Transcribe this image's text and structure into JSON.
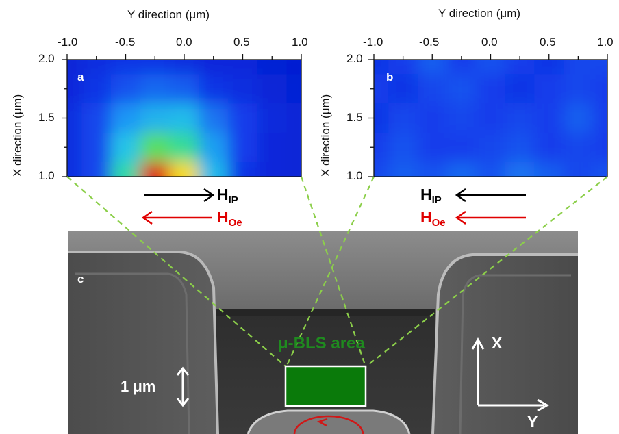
{
  "panels": {
    "a": {
      "label": "a",
      "x_title": "Y direction (μm)",
      "y_title": "X direction (μm)",
      "x_ticks": [
        "-1.0",
        "-0.5",
        "0.0",
        "0.5",
        "1.0"
      ],
      "y_ticks": [
        "2.0",
        "1.5",
        "1.0"
      ]
    },
    "b": {
      "label": "b",
      "x_title": "Y direction (μm)",
      "y_title": "X direction (μm)",
      "x_ticks": [
        "-1.0",
        "-0.5",
        "0.0",
        "0.5",
        "1.0"
      ],
      "y_ticks": [
        "2.0",
        "1.5",
        "1.0"
      ]
    },
    "c": {
      "label": "c",
      "area_label": "μ-BLS area",
      "scale_label": "1 μm",
      "axis_x_label": "X",
      "axis_y_label": "Y"
    }
  },
  "field_labels": {
    "a": {
      "hip_main": "H",
      "hip_sub": "IP",
      "hoe_main": "H",
      "hoe_sub": "Oe",
      "hip_direction": "right",
      "hoe_direction": "left"
    },
    "b": {
      "hip_main": "H",
      "hip_sub": "IP",
      "hoe_main": "H",
      "hoe_sub": "Oe",
      "hip_direction": "left",
      "hoe_direction": "left"
    }
  },
  "colors": {
    "hip": "#000000",
    "hoe": "#e00000",
    "area": "#0a7a0a",
    "area_text": "#1f8a1f",
    "dash": "#8ccf4a",
    "map_base": "#1238e6"
  },
  "chart_data": [
    {
      "type": "heatmap",
      "title": "",
      "xlabel": "Y direction (μm)",
      "ylabel": "X direction (μm)",
      "xlim": [
        -1.0,
        1.0
      ],
      "ylim": [
        1.0,
        2.0
      ],
      "x": [
        -1.0,
        -0.75,
        -0.5,
        -0.25,
        0.0,
        0.25,
        0.5,
        0.75,
        1.0
      ],
      "y": [
        2.0,
        1.75,
        1.5,
        1.25,
        1.0
      ],
      "values": [
        [
          0.05,
          0.08,
          0.1,
          0.1,
          0.08,
          0.06,
          0.06,
          0.04,
          0.03
        ],
        [
          0.06,
          0.1,
          0.16,
          0.2,
          0.18,
          0.1,
          0.08,
          0.05,
          0.04
        ],
        [
          0.08,
          0.14,
          0.28,
          0.34,
          0.36,
          0.22,
          0.12,
          0.07,
          0.05
        ],
        [
          0.08,
          0.14,
          0.38,
          0.6,
          0.52,
          0.3,
          0.12,
          0.06,
          0.05
        ],
        [
          0.08,
          0.14,
          0.5,
          1.0,
          0.82,
          0.36,
          0.1,
          0.06,
          0.05
        ]
      ]
    },
    {
      "type": "heatmap",
      "title": "",
      "xlabel": "Y direction (μm)",
      "ylabel": "X direction (μm)",
      "xlim": [
        -1.0,
        1.0
      ],
      "ylim": [
        1.0,
        2.0
      ],
      "x": [
        -1.0,
        -0.75,
        -0.5,
        -0.25,
        0.0,
        0.25,
        0.5,
        0.75,
        1.0
      ],
      "y": [
        2.0,
        1.75,
        1.5,
        1.25,
        1.0
      ],
      "values": [
        [
          0.1,
          0.12,
          0.18,
          0.12,
          0.16,
          0.12,
          0.1,
          0.14,
          0.14
        ],
        [
          0.12,
          0.1,
          0.14,
          0.16,
          0.12,
          0.1,
          0.12,
          0.14,
          0.12
        ],
        [
          0.1,
          0.14,
          0.12,
          0.14,
          0.12,
          0.14,
          0.12,
          0.18,
          0.12
        ],
        [
          0.12,
          0.16,
          0.12,
          0.12,
          0.14,
          0.16,
          0.12,
          0.14,
          0.12
        ],
        [
          0.14,
          0.18,
          0.16,
          0.2,
          0.16,
          0.22,
          0.18,
          0.14,
          0.16
        ]
      ]
    }
  ]
}
